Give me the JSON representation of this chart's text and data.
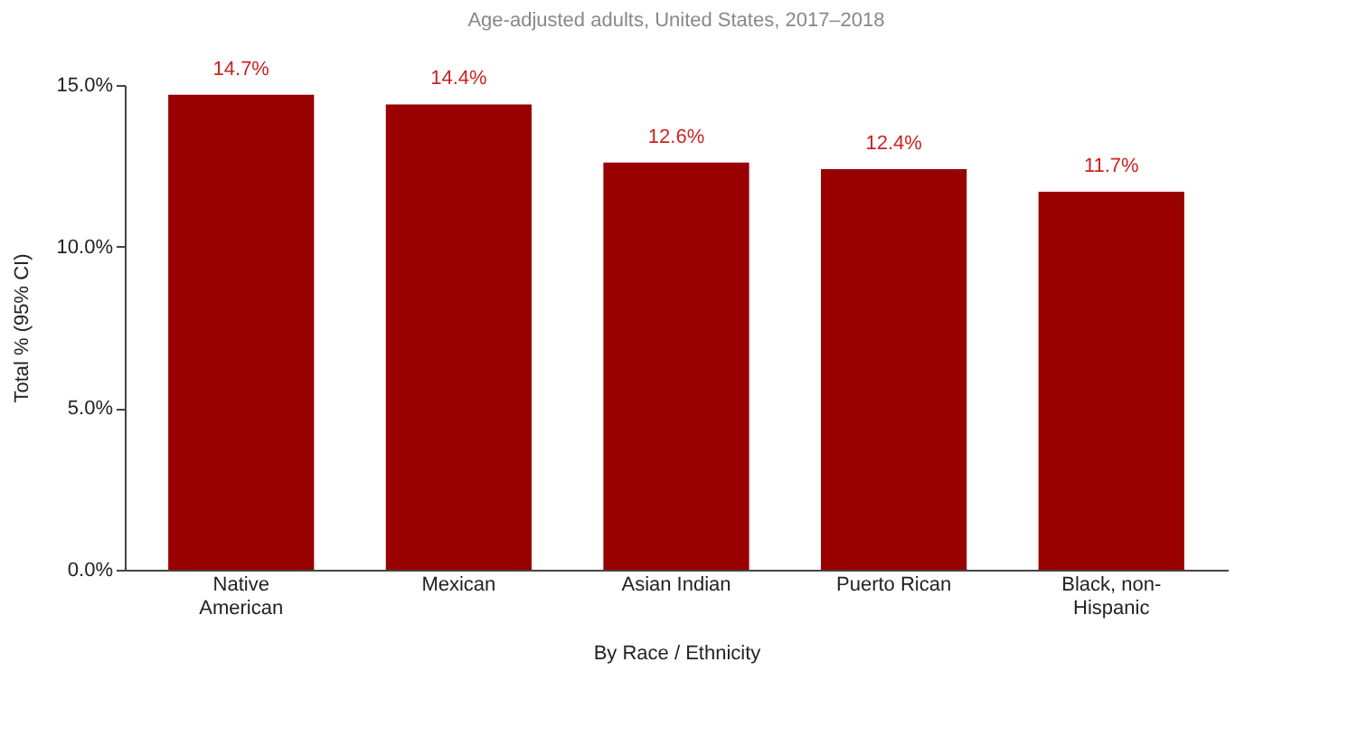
{
  "chart_data": {
    "type": "bar",
    "title": "Age-adjusted adults, United States, 2017–2018",
    "xlabel": "By Race / Ethnicity",
    "ylabel": "Total % (95% CI)",
    "categories": [
      "Native American",
      "Mexican",
      "Asian Indian",
      "Puerto Rican",
      "Black, non-Hispanic"
    ],
    "values": [
      14.7,
      14.4,
      12.6,
      12.4,
      11.7
    ],
    "value_labels": [
      "14.7%",
      "14.4%",
      "12.6%",
      "12.4%",
      "11.7%"
    ],
    "color": "#990000",
    "ylim": [
      0,
      15
    ],
    "yticks": [
      {
        "value": 0,
        "label": "0.0%"
      },
      {
        "value": 5,
        "label": "5.0%"
      },
      {
        "value": 10,
        "label": "10.0%"
      },
      {
        "value": 15,
        "label": "15.0%"
      }
    ],
    "grid": false
  }
}
